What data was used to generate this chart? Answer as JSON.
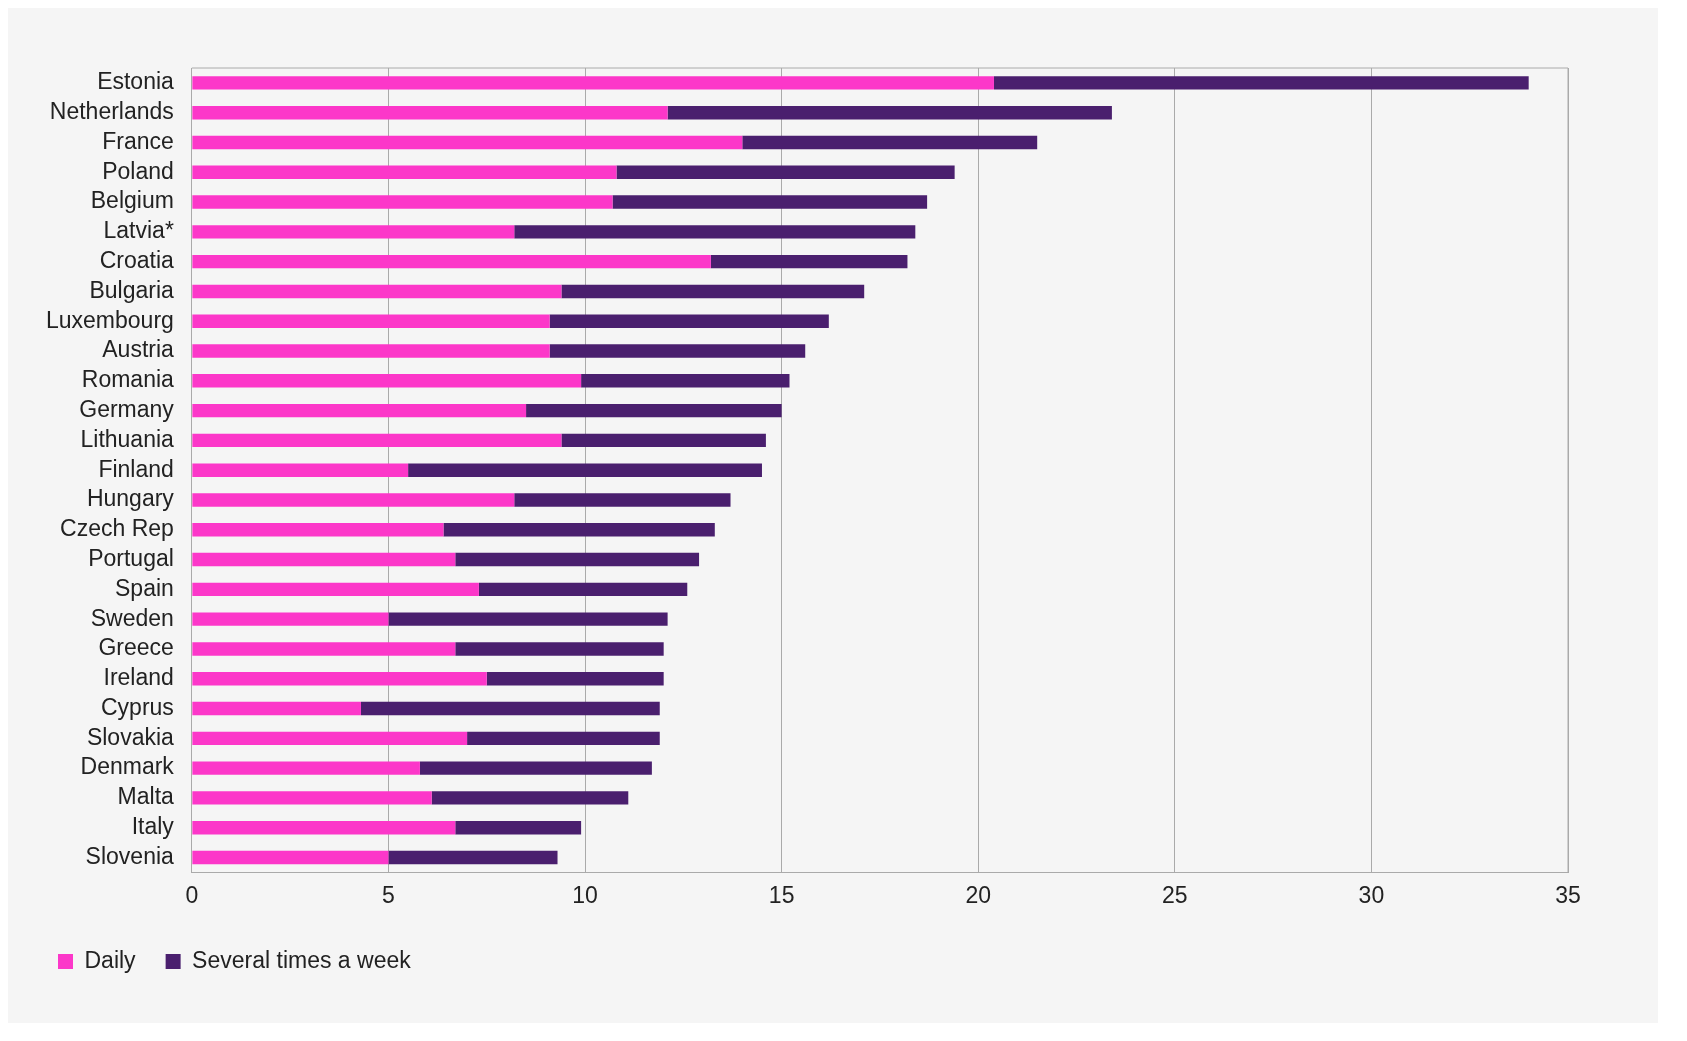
{
  "chart_data": {
    "type": "bar",
    "orientation": "horizontal",
    "stacked": true,
    "categories": [
      "Estonia",
      "Netherlands",
      "France",
      "Poland",
      "Belgium",
      "Latvia*",
      "Croatia",
      "Bulgaria",
      "Luxembourg",
      "Austria",
      "Romania",
      "Germany",
      "Lithuania",
      "Finland",
      "Hungary",
      "Czech Rep",
      "Portugal",
      "Spain",
      "Sweden",
      "Greece",
      "Ireland",
      "Cyprus",
      "Slovakia",
      "Denmark",
      "Malta",
      "Italy",
      "Slovenia"
    ],
    "series": [
      {
        "name": "Daily",
        "color": "#fc37c9",
        "values": [
          20.4,
          12.1,
          14.0,
          10.8,
          10.7,
          8.2,
          13.2,
          9.4,
          9.1,
          9.1,
          9.9,
          8.5,
          9.4,
          5.5,
          8.2,
          6.4,
          6.7,
          7.3,
          5.0,
          6.7,
          7.5,
          4.3,
          7.0,
          5.8,
          6.1,
          6.7,
          5.0
        ]
      },
      {
        "name": "Several times a week",
        "color": "#4a1f6e",
        "values": [
          13.6,
          11.3,
          7.5,
          8.6,
          8.0,
          10.2,
          5.0,
          7.7,
          7.1,
          6.5,
          5.3,
          6.5,
          5.2,
          9.0,
          5.5,
          6.9,
          6.2,
          5.3,
          7.1,
          5.3,
          4.5,
          7.6,
          4.9,
          5.9,
          5.0,
          3.2,
          4.3
        ]
      }
    ],
    "xlim": [
      0,
      35
    ],
    "xticks": [
      0,
      5,
      10,
      15,
      20,
      25,
      30,
      35
    ],
    "grid": "x",
    "legend": "bottom left"
  }
}
